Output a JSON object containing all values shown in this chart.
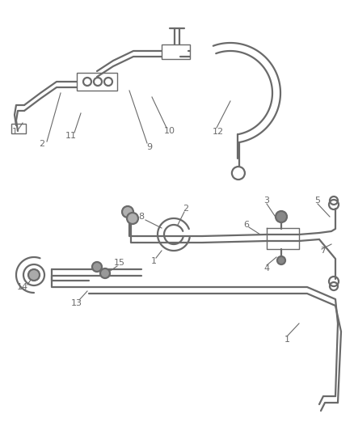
{
  "bg_color": "#ffffff",
  "line_color": "#6a6a6a",
  "label_color": "#6a6a6a",
  "thin_lw": 0.8,
  "thick_lw": 1.6,
  "fig_width": 4.38,
  "fig_height": 5.33,
  "dpi": 100
}
